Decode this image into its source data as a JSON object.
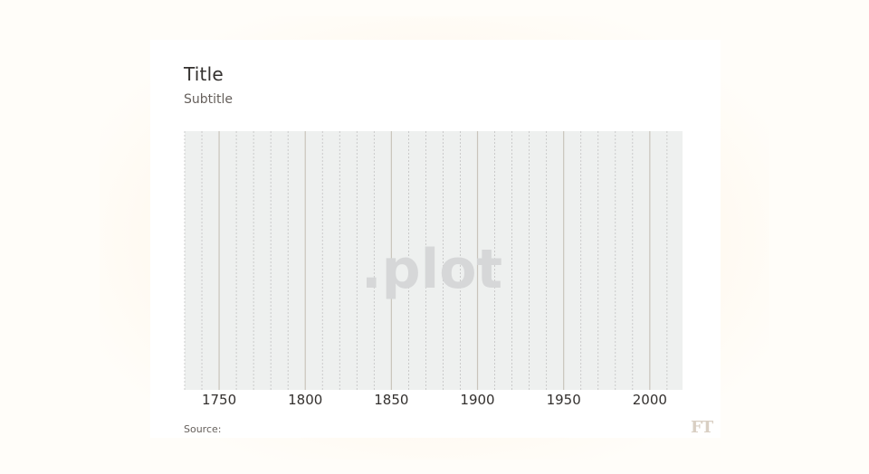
{
  "header": {
    "title": "Title",
    "subtitle": "Subtitle"
  },
  "footer": {
    "source_label": "Source:",
    "brand_logo": "FT"
  },
  "chart_data": {
    "type": "line",
    "title": "Title",
    "subtitle": "Subtitle",
    "xlabel": "",
    "ylabel": "",
    "xlim": [
      1730,
      2019
    ],
    "x_ticks": [
      1750,
      1800,
      1850,
      1900,
      1950,
      2000
    ],
    "minor_tick_step": 10,
    "series": [],
    "grid": true,
    "watermark": ".plot",
    "colors": {
      "plot_background": "#eef0ef",
      "major_grid": "#c9c4bb",
      "minor_grid": "#c2c2c2",
      "watermark": "#d6d7d8"
    }
  }
}
